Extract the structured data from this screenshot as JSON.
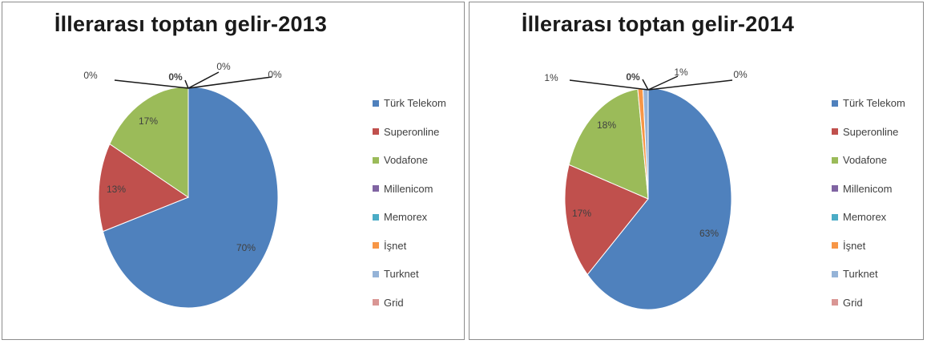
{
  "chart_data": [
    {
      "type": "pie",
      "title": "İllerarası toptan gelir-2013",
      "categories": [
        "Türk Telekom",
        "Superonline",
        "Vodafone",
        "Millenicom",
        "Memorex",
        "İşnet",
        "Turknet",
        "Grid"
      ],
      "values": [
        70,
        13,
        17,
        0,
        0,
        0,
        0,
        0
      ],
      "data_labels": [
        "70%",
        "13%",
        "17%",
        "0%",
        "0%",
        "0%",
        "0%",
        "0%"
      ],
      "legend_position": "right"
    },
    {
      "type": "pie",
      "title": "İllerarası toptan gelir-2014",
      "categories": [
        "Türk Telekom",
        "Superonline",
        "Vodafone",
        "Millenicom",
        "Memorex",
        "İşnet",
        "Turknet",
        "Grid"
      ],
      "values": [
        63,
        17,
        18,
        0,
        0,
        1,
        1,
        0
      ],
      "data_labels": [
        "63%",
        "17%",
        "18%",
        "0%",
        "0%",
        "1%",
        "1%",
        "0%"
      ],
      "legend_position": "right"
    }
  ],
  "colors": [
    "#4f81bd",
    "#c0504d",
    "#9bbb59",
    "#8064a2",
    "#4bacc6",
    "#f79646",
    "#95b3d7",
    "#d99694"
  ]
}
